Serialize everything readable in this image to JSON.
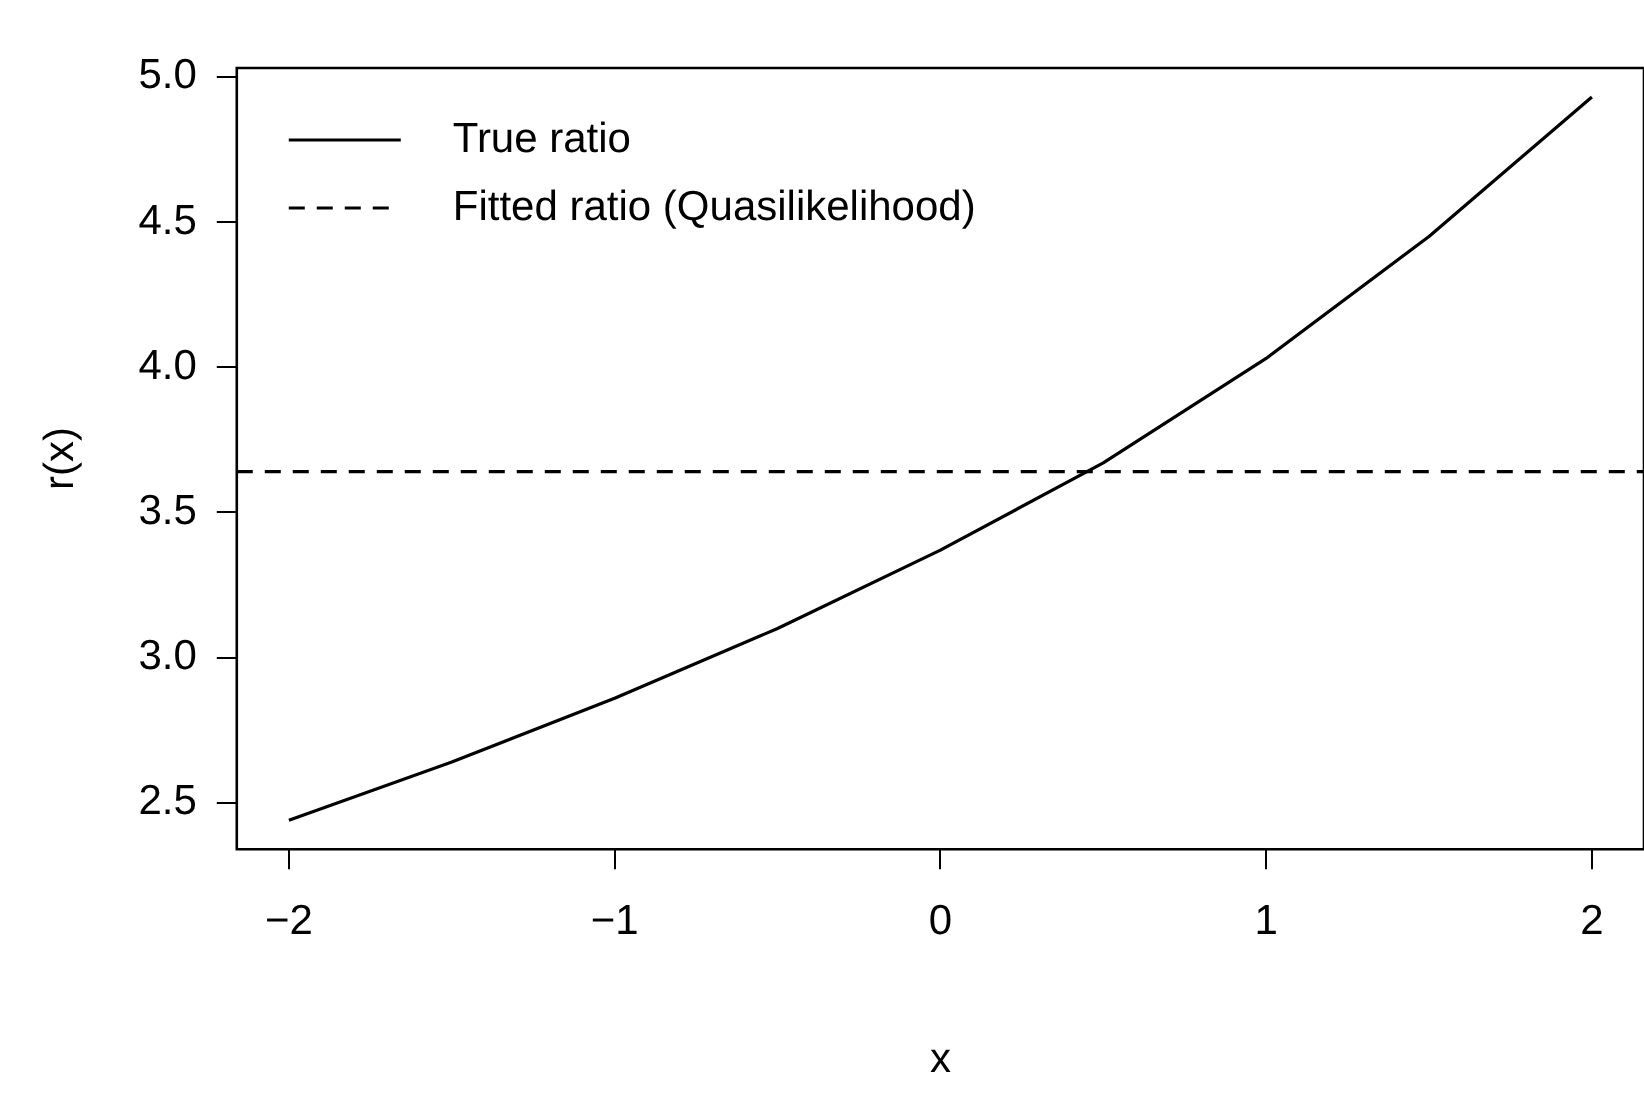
{
  "chart_data": {
    "type": "line",
    "xlabel": "x",
    "ylabel": "r(x)",
    "xlim": [
      -2.16,
      2.16
    ],
    "xticks": [
      {
        "value": -2,
        "label": "−2"
      },
      {
        "value": -1,
        "label": "−1"
      },
      0,
      1,
      2
    ],
    "ylim": [
      2.34,
      5.03
    ],
    "yticks": [
      {
        "value": 2.5,
        "label": "2.5"
      },
      {
        "value": 3,
        "label": "3.0"
      },
      {
        "value": 3.5,
        "label": "3.5"
      },
      {
        "value": 4,
        "label": "4.0"
      },
      {
        "value": 4.5,
        "label": "4.5"
      },
      {
        "value": 5,
        "label": "5.0"
      }
    ],
    "grid": false,
    "legend": "top left",
    "marker": "none",
    "series": [
      {
        "name": "True ratio",
        "color": "#000000",
        "line_style": "solid",
        "x": [
          -2,
          -1.5,
          -1,
          -0.5,
          0,
          0.5,
          1,
          1.5,
          2
        ],
        "values": [
          2.44,
          2.64,
          2.86,
          3.1,
          3.37,
          3.67,
          4.03,
          4.45,
          4.93
        ]
      },
      {
        "name": "Fitted ratio (Quasilikelihood)",
        "color": "#000000",
        "line_style": "dashed",
        "x": [
          -2.16,
          2.16
        ],
        "values": [
          3.64,
          3.64
        ]
      }
    ]
  }
}
